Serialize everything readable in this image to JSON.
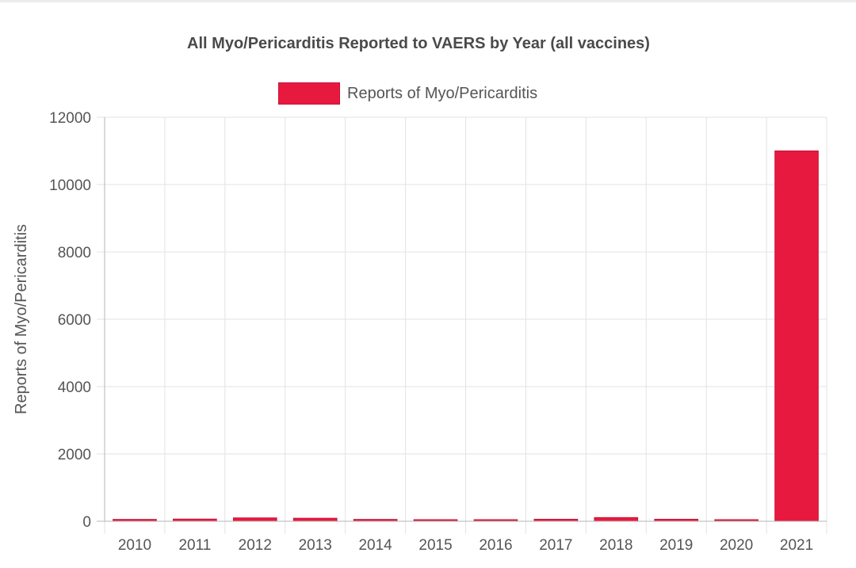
{
  "chart_data": {
    "type": "bar",
    "title": "All Myo/Pericarditis Reported to VAERS by Year (all vaccines)",
    "xlabel": "",
    "ylabel": "Reports of Myo/Pericarditis",
    "categories": [
      "2010",
      "2011",
      "2012",
      "2013",
      "2014",
      "2015",
      "2016",
      "2017",
      "2018",
      "2019",
      "2020",
      "2021"
    ],
    "series": [
      {
        "name": "Reports of Myo/Pericarditis",
        "values": [
          55,
          65,
          100,
          90,
          55,
          25,
          45,
          60,
          110,
          60,
          40,
          11000
        ]
      }
    ],
    "ylim": [
      0,
      12000
    ],
    "yticks": [
      "0",
      "2000",
      "4000",
      "6000",
      "8000",
      "10000",
      "12000"
    ],
    "grid": true,
    "legend_position": "top-center",
    "colors": {
      "bar_fill": "#e8193f",
      "bar_border": "#c8143a",
      "grid": "#e3e3e3",
      "axis": "#b5b5b5"
    }
  }
}
